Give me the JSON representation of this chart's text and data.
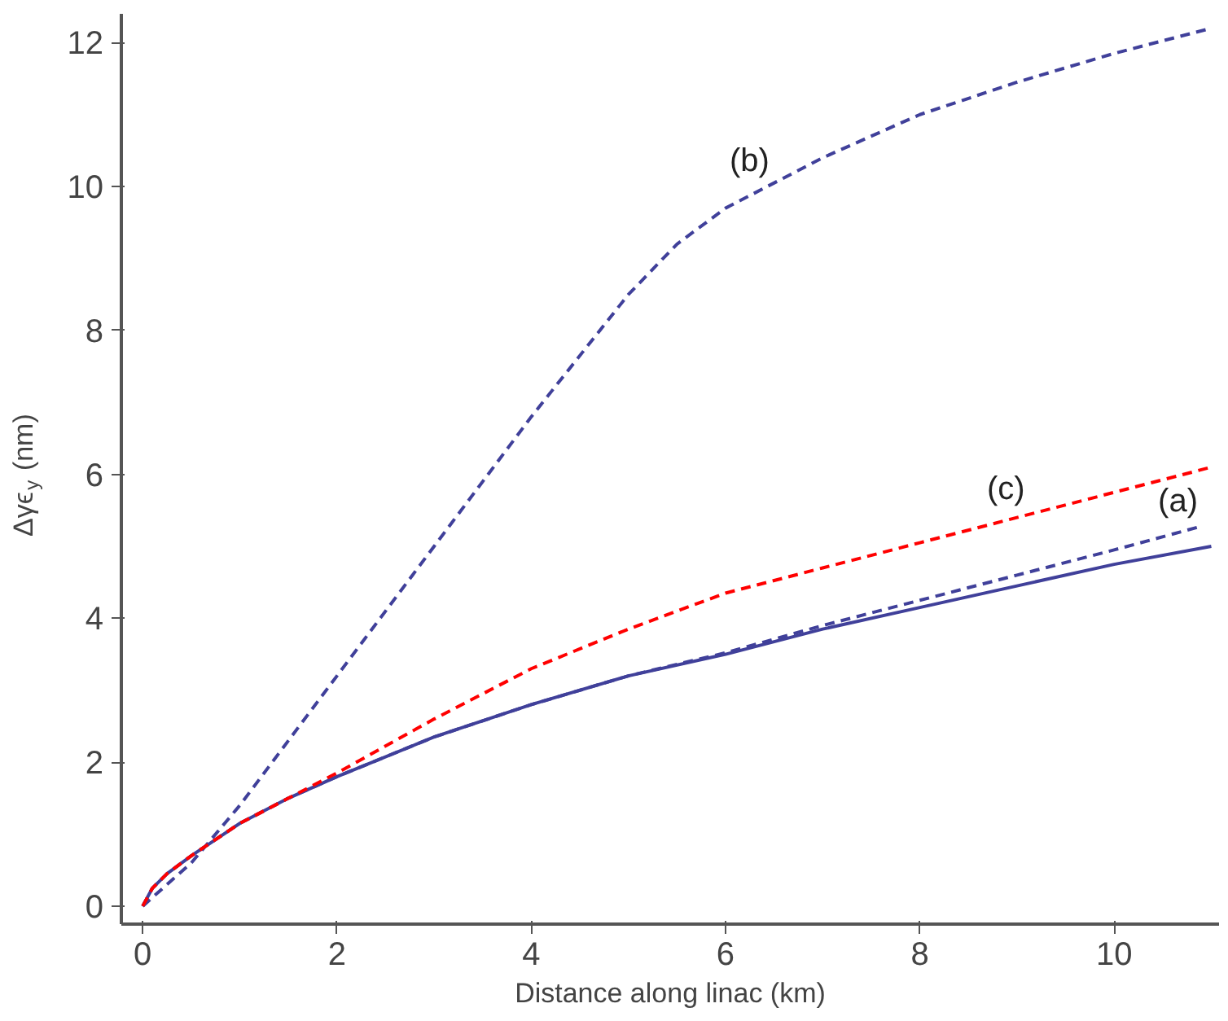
{
  "chart_data": {
    "type": "line",
    "xlabel": "Distance along linac (km)",
    "ylabel": "Δγϵ$_{y}$ (nm)",
    "xlim": [
      -0.22,
      11.08
    ],
    "ylim": [
      -0.25,
      12.4
    ],
    "xticks": [
      0,
      2,
      4,
      6,
      8,
      10
    ],
    "yticks": [
      0,
      2,
      4,
      6,
      8,
      10,
      12
    ],
    "grid": false,
    "marker": "none",
    "series": [
      {
        "color": "#40409a",
        "line_style": "solid",
        "x": [
          0,
          0.1,
          0.25,
          0.5,
          1,
          1.5,
          2,
          3,
          4,
          5,
          6,
          7,
          8,
          9,
          10,
          11
        ],
        "values": [
          0,
          0.25,
          0.45,
          0.7,
          1.15,
          1.5,
          1.8,
          2.35,
          2.8,
          3.2,
          3.5,
          3.85,
          4.15,
          4.45,
          4.75,
          5.0
        ]
      },
      {
        "name": "(a)",
        "color": "#40409a",
        "line_style": "dashed",
        "x": [
          0,
          0.1,
          0.25,
          0.5,
          1,
          1.5,
          2,
          3,
          4,
          5,
          6,
          7,
          8,
          9,
          10,
          10.9
        ],
        "values": [
          0,
          0.25,
          0.45,
          0.7,
          1.15,
          1.5,
          1.8,
          2.35,
          2.8,
          3.2,
          3.52,
          3.9,
          4.25,
          4.6,
          4.95,
          5.28
        ]
      },
      {
        "name": "(b)",
        "color": "#40409a",
        "line_style": "dashed",
        "x": [
          0,
          0.5,
          1,
          2,
          3,
          4,
          5,
          5.5,
          6,
          7,
          8,
          9,
          10,
          11
        ],
        "values": [
          0,
          0.6,
          1.4,
          3.2,
          5.0,
          6.8,
          8.5,
          9.2,
          9.7,
          10.4,
          11.0,
          11.45,
          11.85,
          12.2
        ]
      },
      {
        "name": "(c)",
        "color": "#ff0000",
        "line_style": "dashed",
        "x": [
          0,
          0.1,
          0.25,
          0.5,
          1,
          1.5,
          2,
          3,
          4,
          5,
          6,
          7,
          8,
          9,
          10,
          11
        ],
        "values": [
          0,
          0.25,
          0.45,
          0.7,
          1.15,
          1.5,
          1.85,
          2.6,
          3.3,
          3.85,
          4.35,
          4.7,
          5.05,
          5.4,
          5.75,
          6.1
        ]
      }
    ]
  }
}
